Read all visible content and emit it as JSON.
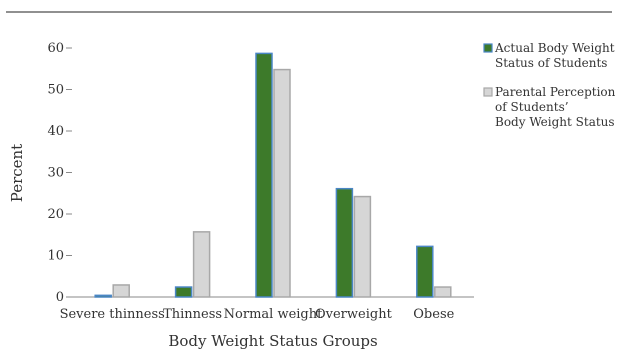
{
  "chart_data": {
    "type": "bar",
    "title": "",
    "xlabel": "Body Weight Status Groups",
    "ylabel": "Percent",
    "ylim": [
      0,
      60
    ],
    "yticks": [
      0,
      10,
      20,
      30,
      40,
      50,
      60
    ],
    "grid": false,
    "legend_position": "right",
    "categories": [
      "Severe thinness",
      "Thinness",
      "Normal weight",
      "Overweight",
      "Obese"
    ],
    "series": [
      {
        "name": "Actual Body Weight Status of Students",
        "legend_lines": [
          "Actual Body Weight",
          "Status of Students"
        ],
        "values": [
          0.4,
          2.4,
          58.7,
          26.1,
          12.2
        ],
        "color": "#3d7a2a",
        "border": "#4a86c5"
      },
      {
        "name": "Parental Perception of Students' Body Weight Status",
        "legend_lines": [
          "Parental Perception",
          "of Students’",
          "Body Weight Status"
        ],
        "values": [
          2.9,
          15.7,
          54.8,
          24.2,
          2.4
        ],
        "color": "#d6d6d6",
        "border": "#a8a8a8"
      }
    ]
  }
}
